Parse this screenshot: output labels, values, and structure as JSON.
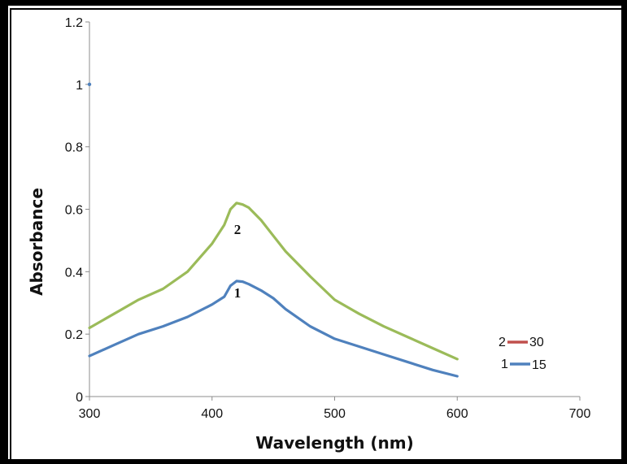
{
  "chart_data": {
    "type": "line",
    "xlabel": "Wavelength (nm)",
    "ylabel": "Absorbance",
    "xlim": [
      300,
      700
    ],
    "ylim": [
      0,
      1.2
    ],
    "xticks": [
      "300",
      "400",
      "500",
      "600",
      "700"
    ],
    "yticks": [
      "0",
      "0.2",
      "0.4",
      "0.6",
      "0.8",
      "1",
      "1.2"
    ],
    "grid": false,
    "legend_position": "right",
    "series": [
      {
        "name": "30",
        "curve_label": "2",
        "legend_number": "2",
        "line_color": "#9bbb59",
        "legend_color": "#c0504d",
        "x": [
          300,
          320,
          340,
          360,
          380,
          400,
          410,
          415,
          420,
          425,
          430,
          440,
          450,
          460,
          480,
          500,
          520,
          540,
          560,
          580,
          600
        ],
        "y": [
          0.22,
          0.265,
          0.31,
          0.345,
          0.4,
          0.49,
          0.55,
          0.6,
          0.62,
          0.615,
          0.605,
          0.565,
          0.515,
          0.465,
          0.385,
          0.31,
          0.265,
          0.225,
          0.19,
          0.155,
          0.12
        ]
      },
      {
        "name": "15",
        "curve_label": "1",
        "legend_number": "1",
        "line_color": "#4f81bd",
        "legend_color": "#4f81bd",
        "x": [
          300,
          320,
          340,
          360,
          380,
          400,
          410,
          415,
          420,
          425,
          430,
          440,
          450,
          460,
          480,
          500,
          520,
          540,
          560,
          580,
          600
        ],
        "y": [
          0.13,
          0.165,
          0.2,
          0.225,
          0.255,
          0.295,
          0.32,
          0.355,
          0.37,
          0.368,
          0.36,
          0.34,
          0.315,
          0.28,
          0.225,
          0.185,
          0.16,
          0.135,
          0.11,
          0.085,
          0.065
        ]
      }
    ]
  }
}
